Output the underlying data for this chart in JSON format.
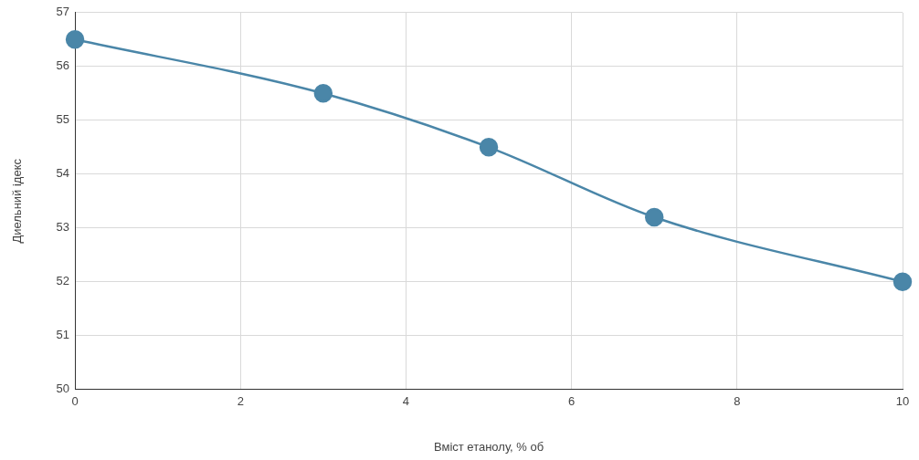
{
  "chart_data": {
    "type": "line",
    "xlabel": "Вміст етанолу, % об",
    "ylabel": "Диельний ідекс",
    "x": [
      0,
      3,
      5,
      7,
      10
    ],
    "series": [
      {
        "color": "#4a86a8",
        "values": [
          56.5,
          55.5,
          54.5,
          53.2,
          52
        ]
      }
    ],
    "xlim": [
      0,
      10
    ],
    "xticks": [
      0,
      2,
      4,
      6,
      8,
      10
    ],
    "ylim": [
      50,
      57
    ],
    "yticks": [
      50,
      51,
      52,
      53,
      54,
      55,
      56,
      57
    ],
    "grid": true,
    "legend": false,
    "marker": "circle",
    "line_style": "solid"
  }
}
